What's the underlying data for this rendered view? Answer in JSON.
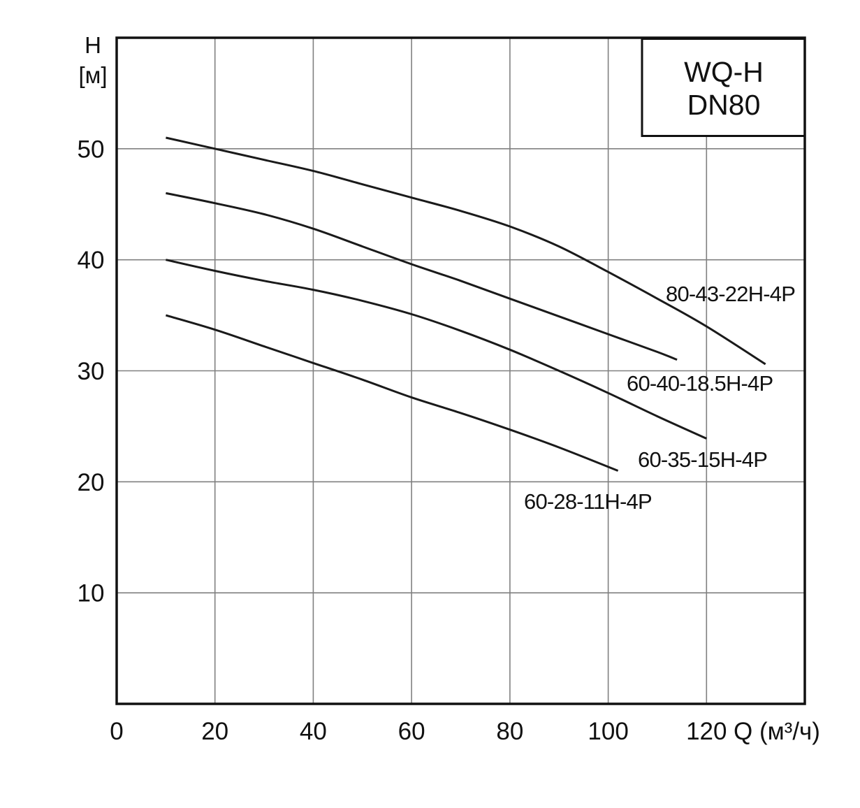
{
  "chart_data": {
    "type": "line",
    "model_label": {
      "line1": "WQ-H",
      "line2": "DN80"
    },
    "xlabel": "Q (м³/ч)",
    "ylabel": "H",
    "ylabel_unit": "[м]",
    "xlim": [
      0,
      140
    ],
    "ylim": [
      0,
      60
    ],
    "xticks": [
      0,
      20,
      40,
      60,
      80,
      100,
      120
    ],
    "yticks": [
      10,
      20,
      30,
      40,
      50
    ],
    "grid": true,
    "legend": "inline",
    "colors": {
      "line": "#1a1a1a",
      "grid": "#808080",
      "frame": "#111111",
      "background": "#ffffff"
    },
    "series": [
      {
        "name": "80-43-22H-4P",
        "x": [
          10,
          20,
          30,
          40,
          50,
          60,
          70,
          80,
          90,
          100,
          110,
          120,
          132
        ],
        "y": [
          51,
          50,
          49,
          48,
          46.8,
          45.6,
          44.4,
          43.0,
          41.2,
          38.9,
          36.5,
          34.0,
          30.6
        ]
      },
      {
        "name": "60-40-18.5H-4P",
        "x": [
          10,
          20,
          30,
          40,
          50,
          60,
          70,
          80,
          90,
          100,
          110,
          114
        ],
        "y": [
          46,
          45.1,
          44.1,
          42.8,
          41.2,
          39.6,
          38.1,
          36.5,
          34.9,
          33.3,
          31.7,
          31.0
        ]
      },
      {
        "name": "60-35-15H-4P",
        "x": [
          10,
          20,
          30,
          40,
          50,
          60,
          70,
          80,
          90,
          100,
          110,
          120
        ],
        "y": [
          40,
          39,
          38.1,
          37.3,
          36.3,
          35.1,
          33.6,
          31.9,
          30.0,
          28.0,
          25.9,
          23.9
        ]
      },
      {
        "name": "60-28-11H-4P",
        "x": [
          10,
          20,
          30,
          40,
          50,
          60,
          70,
          80,
          90,
          102
        ],
        "y": [
          35,
          33.7,
          32.2,
          30.7,
          29.2,
          27.6,
          26.2,
          24.7,
          23.1,
          21.0
        ]
      }
    ]
  }
}
